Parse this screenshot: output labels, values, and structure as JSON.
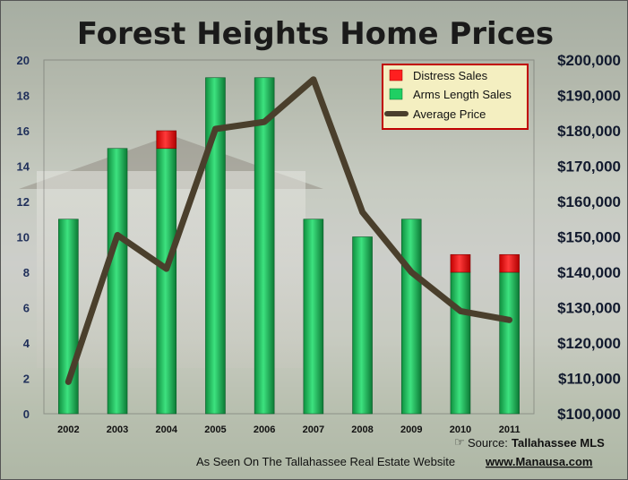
{
  "chart_data": {
    "type": "bar",
    "title": "Forest Heights Home Prices",
    "categories": [
      "2002",
      "2003",
      "2004",
      "2005",
      "2006",
      "2007",
      "2008",
      "2009",
      "2010",
      "2011"
    ],
    "series": [
      {
        "name": "Distress Sales",
        "type": "bar",
        "stacked": true,
        "values": [
          0,
          0,
          1,
          0,
          0,
          0,
          0,
          0,
          1,
          1
        ],
        "color": "#ff1f1f"
      },
      {
        "name": "Arms Length Sales",
        "type": "bar",
        "stacked": true,
        "values": [
          11,
          15,
          15,
          19,
          19,
          11,
          10,
          11,
          8,
          8
        ],
        "color": "#1fcf63"
      },
      {
        "name": "Average Price",
        "type": "line",
        "axis": "right",
        "values": [
          109000,
          150500,
          141000,
          180500,
          182500,
          194500,
          157000,
          140000,
          129000,
          126500
        ],
        "color": "#4a3f2c"
      }
    ],
    "left_axis": {
      "ylim": [
        0,
        20
      ],
      "ticks": [
        "0",
        "2",
        "4",
        "6",
        "8",
        "10",
        "12",
        "14",
        "16",
        "18",
        "20"
      ]
    },
    "right_axis": {
      "ylim": [
        100000,
        200000
      ],
      "ticks": [
        "$100,000",
        "$110,000",
        "$120,000",
        "$130,000",
        "$140,000",
        "$150,000",
        "$160,000",
        "$170,000",
        "$180,000",
        "$190,000",
        "$200,000"
      ]
    },
    "grid": false,
    "legend_position": "top-right",
    "legend": [
      {
        "label": "Distress Sales",
        "color": "#ff1f1f",
        "shape": "box"
      },
      {
        "label": "Arms Length Sales",
        "color": "#1fcf63",
        "shape": "box"
      },
      {
        "label": "Average Price",
        "color": "#4a3f2c",
        "shape": "line"
      }
    ]
  },
  "footer": {
    "source_prefix": "Source:",
    "source_name": "Tallahassee MLS",
    "credit_text": "As Seen On The Tallahassee Real Estate Website",
    "credit_site": "www.Manausa.com"
  }
}
